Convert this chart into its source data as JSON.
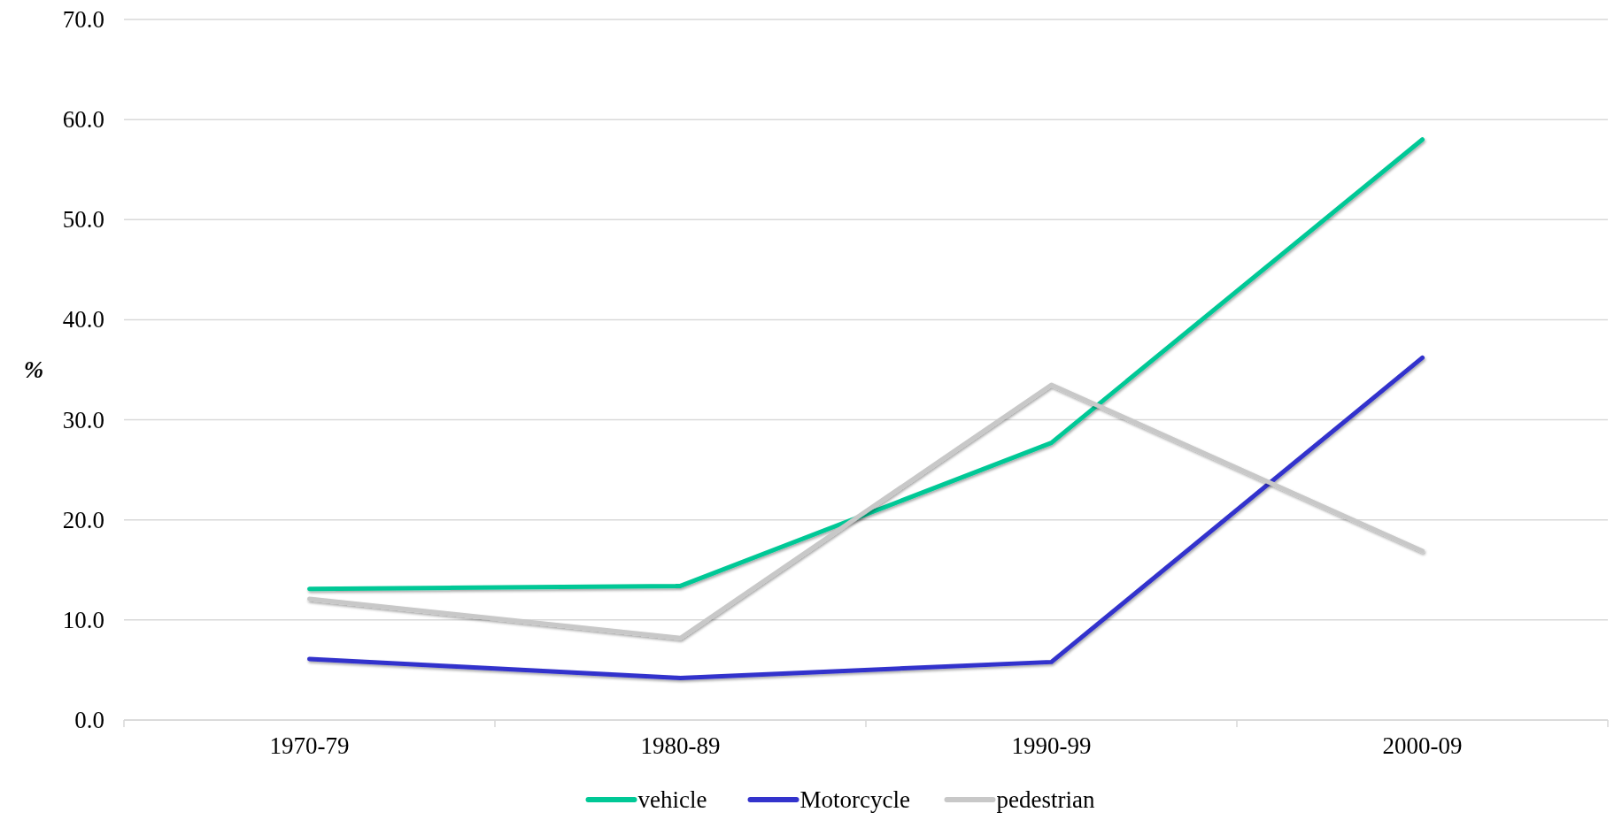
{
  "chart_data": {
    "type": "line",
    "ylabel": "%",
    "categories": [
      "1970-79",
      "1980-89",
      "1990-99",
      "2000-09"
    ],
    "series": [
      {
        "name": "vehicle",
        "color": "#00c896",
        "values": [
          13.1,
          13.4,
          27.7,
          58.0
        ]
      },
      {
        "name": "Motorcycle",
        "color": "#3333cc",
        "values": [
          6.1,
          4.2,
          5.8,
          36.2
        ]
      },
      {
        "name": "pedestrian",
        "color": "#c8c8c8",
        "values": [
          12.1,
          8.2,
          33.5,
          16.9
        ]
      }
    ],
    "ylim": [
      0,
      70
    ],
    "yticks": [
      {
        "value": 0,
        "label": "0.0"
      },
      {
        "value": 10,
        "label": "10.0"
      },
      {
        "value": 20,
        "label": "20.0"
      },
      {
        "value": 30,
        "label": "30.0"
      },
      {
        "value": 40,
        "label": "40.0"
      },
      {
        "value": 50,
        "label": "50.0"
      },
      {
        "value": 60,
        "label": "60.0"
      },
      {
        "value": 70,
        "label": "70.0"
      }
    ],
    "grid": "y",
    "legend": "bottom",
    "marker": "none",
    "line_style": "solid"
  }
}
